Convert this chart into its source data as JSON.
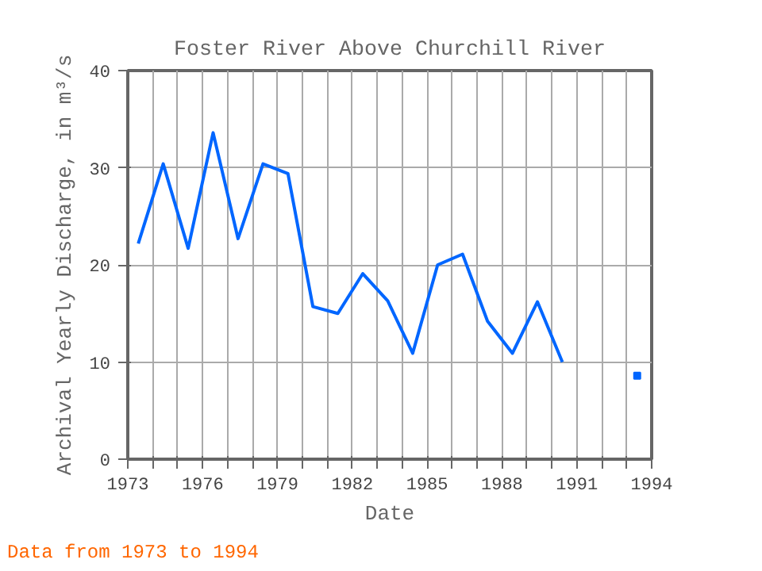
{
  "chart_data": {
    "type": "line",
    "title": "Foster River Above Churchill River",
    "xlabel": "Date",
    "ylabel": "Archival Yearly Discharge, in m³/s",
    "x": [
      1973.42,
      1974.42,
      1975.42,
      1976.42,
      1977.42,
      1978.42,
      1979.42,
      1980.42,
      1981.42,
      1982.42,
      1983.42,
      1984.42,
      1985.42,
      1986.42,
      1987.42,
      1988.42,
      1989.42,
      1990.42,
      1991.42,
      1992.42,
      1993.42
    ],
    "series": [
      {
        "color": "#0066ff",
        "values": [
          22.2,
          30.4,
          21.7,
          33.6,
          22.7,
          30.4,
          29.4,
          15.7,
          15.0,
          19.1,
          16.3,
          10.9,
          20.0,
          21.1,
          14.2,
          10.9,
          16.2,
          10.0,
          null,
          null,
          8.6
        ]
      }
    ],
    "xlim": [
      1973,
      1994
    ],
    "xticks": [
      1973,
      {
        "value": 1974,
        "label": null
      },
      {
        "value": 1975,
        "label": null
      },
      1976,
      {
        "value": 1977,
        "label": null
      },
      {
        "value": 1978,
        "label": null
      },
      1979,
      {
        "value": 1980,
        "label": null
      },
      {
        "value": 1981,
        "label": null
      },
      1982,
      {
        "value": 1983,
        "label": null
      },
      {
        "value": 1984,
        "label": null
      },
      1985,
      {
        "value": 1986,
        "label": null
      },
      {
        "value": 1987,
        "label": null
      },
      1988,
      {
        "value": 1989,
        "label": null
      },
      {
        "value": 1990,
        "label": null
      },
      1991,
      {
        "value": 1992,
        "label": null
      },
      {
        "value": 1993,
        "label": null
      },
      1994
    ],
    "ylim": [
      0,
      40
    ],
    "yticks": [
      0,
      10,
      20,
      30,
      40
    ],
    "grid": true,
    "marker": "none",
    "line_style": "solid",
    "annotations": [
      "Data from 1973 to 1994"
    ]
  }
}
